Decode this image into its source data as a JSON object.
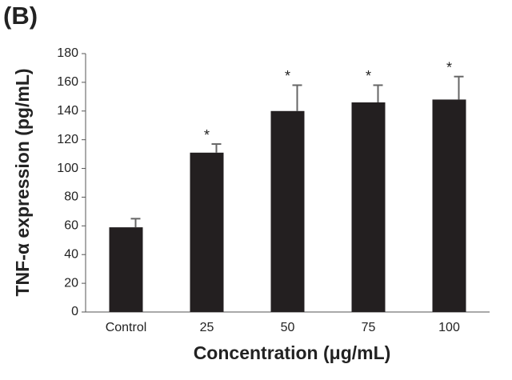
{
  "chart_data": {
    "type": "bar",
    "panel_label": "(B)",
    "x_label": "Concentration (μg/mL)",
    "y_label": "TNF-α expression (pg/mL)",
    "categories": [
      "Control",
      "25",
      "50",
      "75",
      "100"
    ],
    "values": [
      59,
      111,
      140,
      146,
      148
    ],
    "errors": [
      6,
      6,
      18,
      12,
      16
    ],
    "markers": [
      null,
      "*",
      "*",
      "*",
      "*"
    ],
    "color": "#231f20",
    "ylim": [
      0,
      180
    ],
    "yticks": [
      0,
      20,
      40,
      60,
      80,
      100,
      120,
      140,
      160,
      180
    ]
  }
}
